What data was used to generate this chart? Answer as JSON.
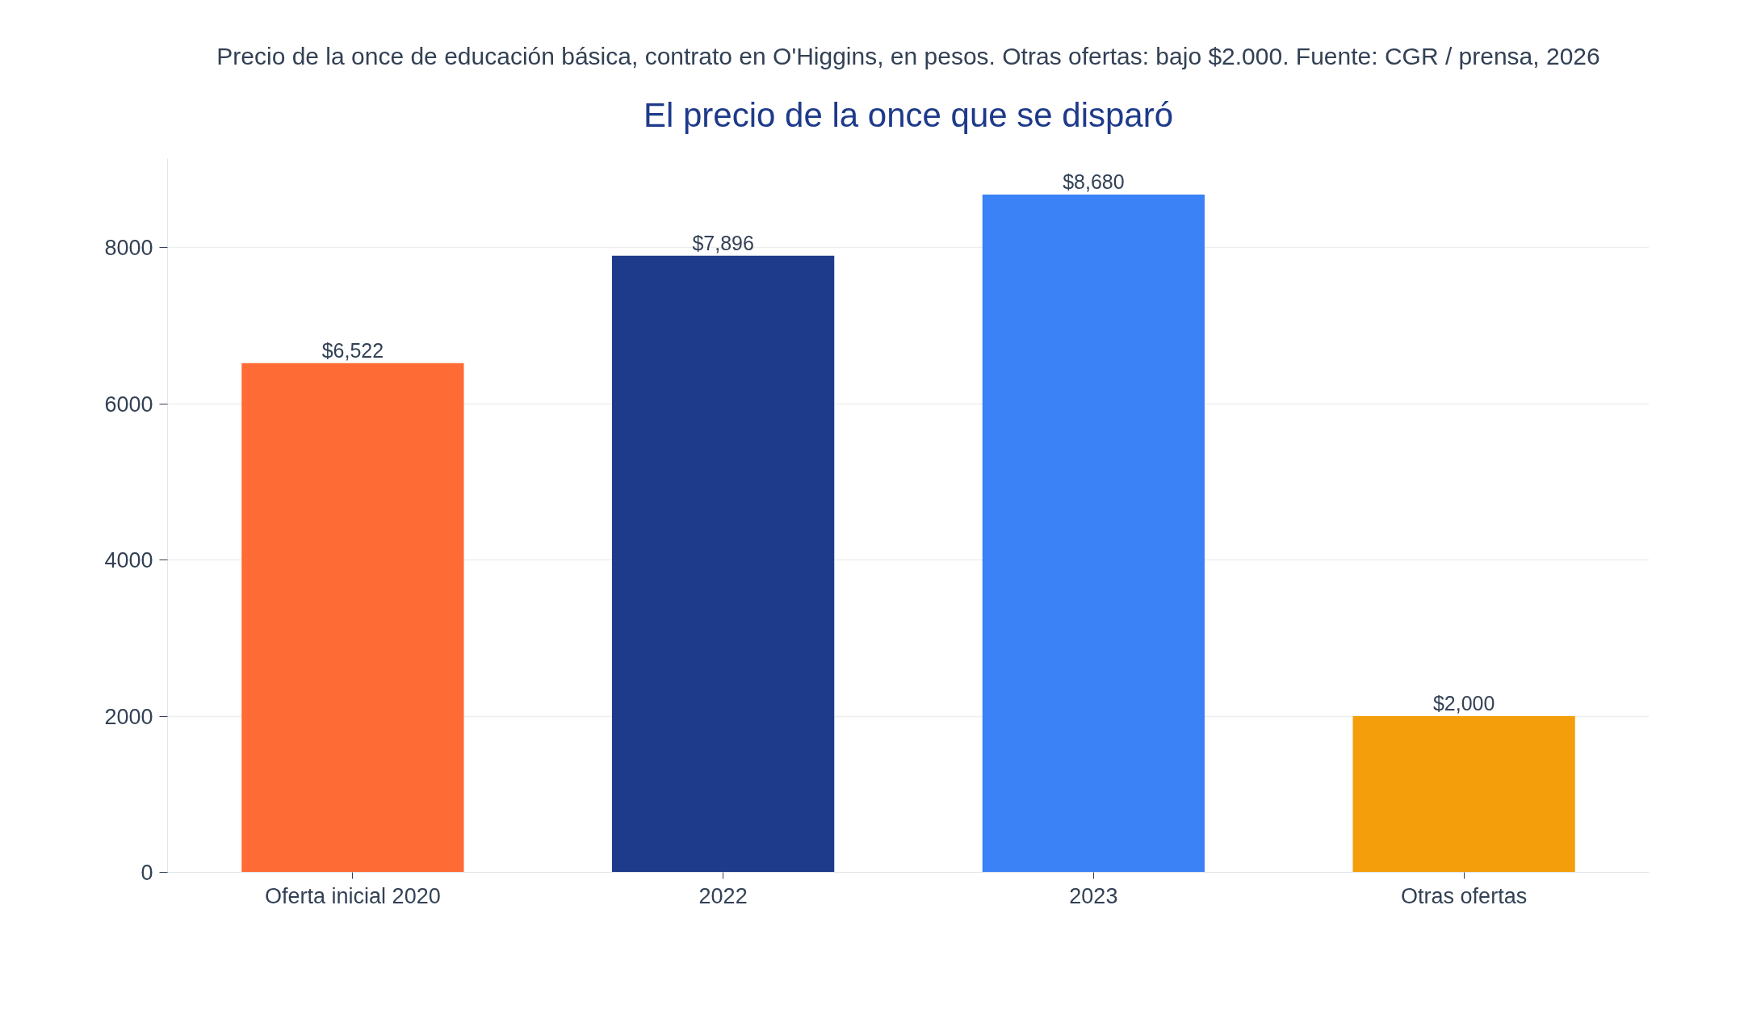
{
  "chart_data": {
    "type": "bar",
    "title": "El precio de la once que se disparó",
    "subtitle": "Precio de la once de educación básica, contrato en O'Higgins, en pesos. Otras ofertas: bajo $2.000. Fuente: CGR / prensa, 2026",
    "categories": [
      "Oferta inicial 2020",
      "2022",
      "2023",
      "Otras ofertas"
    ],
    "values": [
      6522,
      7896,
      8680,
      2000
    ],
    "colors": [
      "#ff6b35",
      "#1e3a8a",
      "#3b82f6",
      "#f59e0b"
    ],
    "value_labels": [
      "$6,522",
      "$7,896",
      "$8,680",
      "$2,000"
    ],
    "ylim": [
      0,
      9140
    ],
    "yticks": [
      0,
      2000,
      4000,
      6000,
      8000
    ],
    "grid": "y"
  }
}
